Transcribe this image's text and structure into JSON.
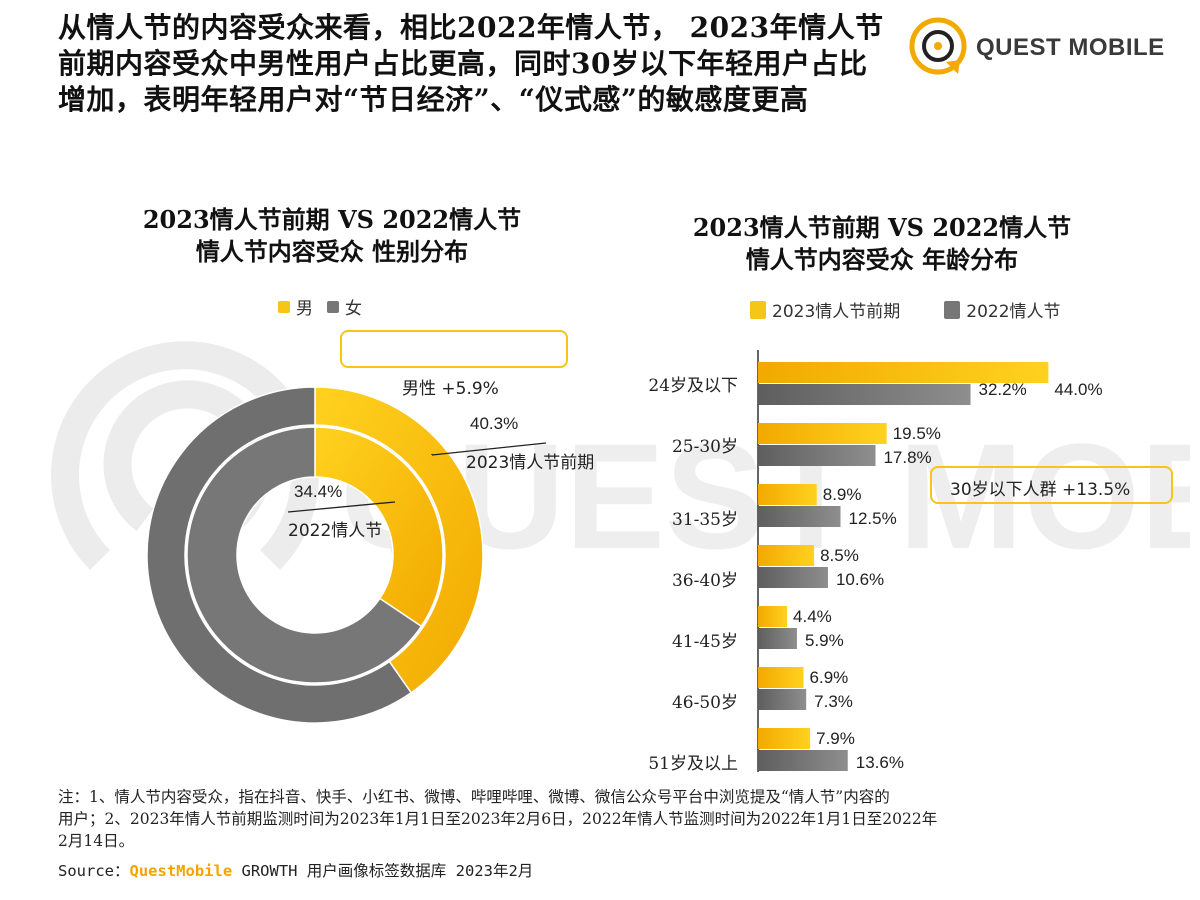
{
  "header": {
    "headline_lines": [
      "从情人节的内容受众来看，相比2022年情人节， 2023年情人节",
      "前期内容受众中男性用户占比更高，同时30岁以下年轻用户占比",
      "增加，表明年轻用户对“节日经济”、“仪式感”的敏感度更高"
    ],
    "brand": "QUEST MOBILE"
  },
  "watermark": "QUEST MOBILE",
  "colors": {
    "accent": "#f5c518",
    "accent_dark": "#f2a900",
    "grey": "#6f6f6f",
    "grey_light": "#8a8a8a"
  },
  "chart_data": [
    {
      "type": "donut",
      "title_lines": [
        "2023情人节前期 VS 2022情人节",
        "情人节内容受众 性别分布"
      ],
      "legend": [
        "男",
        "女"
      ],
      "rings": [
        {
          "name": "2023情人节前期",
          "ring": "outer",
          "values": {
            "男": 40.3,
            "女": 59.7
          }
        },
        {
          "name": "2022情人节",
          "ring": "inner",
          "values": {
            "男": 34.4,
            "女": 65.6
          }
        }
      ],
      "labels": {
        "outer_pct": "40.3%",
        "outer_name": "2023情人节前期",
        "inner_pct": "34.4%",
        "inner_name": "2022情人节"
      },
      "annotation": "男性 +5.9%"
    },
    {
      "type": "bar",
      "orientation": "horizontal",
      "title_lines": [
        "2023情人节前期 VS 2022情人节",
        "情人节内容受众 年龄分布"
      ],
      "categories": [
        "24岁及以下",
        "25-30岁",
        "31-35岁",
        "36-40岁",
        "41-45岁",
        "46-50岁",
        "51岁及以上"
      ],
      "series": [
        {
          "name": "2023情人节前期",
          "values": [
            44.0,
            19.5,
            8.9,
            8.5,
            4.4,
            6.9,
            7.9
          ]
        },
        {
          "name": "2022情人节",
          "values": [
            32.2,
            17.8,
            12.5,
            10.6,
            5.9,
            7.3,
            13.6
          ]
        }
      ],
      "value_labels": [
        [
          "44.0%",
          "19.5%",
          "8.9%",
          "8.5%",
          "4.4%",
          "6.9%",
          "7.9%"
        ],
        [
          "32.2%",
          "17.8%",
          "12.5%",
          "10.6%",
          "5.9%",
          "7.3%",
          "13.6%"
        ]
      ],
      "annotation": "30岁以下人群 +13.5%",
      "xlabel": "",
      "ylabel": "",
      "xlim": [
        0,
        50
      ]
    }
  ],
  "footnote": {
    "lines": [
      "注：1、情人节内容受众，指在抖音、快手、小红书、微博、哔哩哔哩、微博、微信公众号平台中浏览提及“情人节”内容的",
      "用户；2、2023年情人节前期监测时间为2023年1月1日至2023年2月6日，2022年情人节监测时间为2022年1月1日至2022年",
      "2月14日。"
    ],
    "source_prefix": "Source：",
    "source_brand": "QuestMobile",
    "source_rest": " GROWTH 用户画像标签数据库 2023年2月"
  }
}
